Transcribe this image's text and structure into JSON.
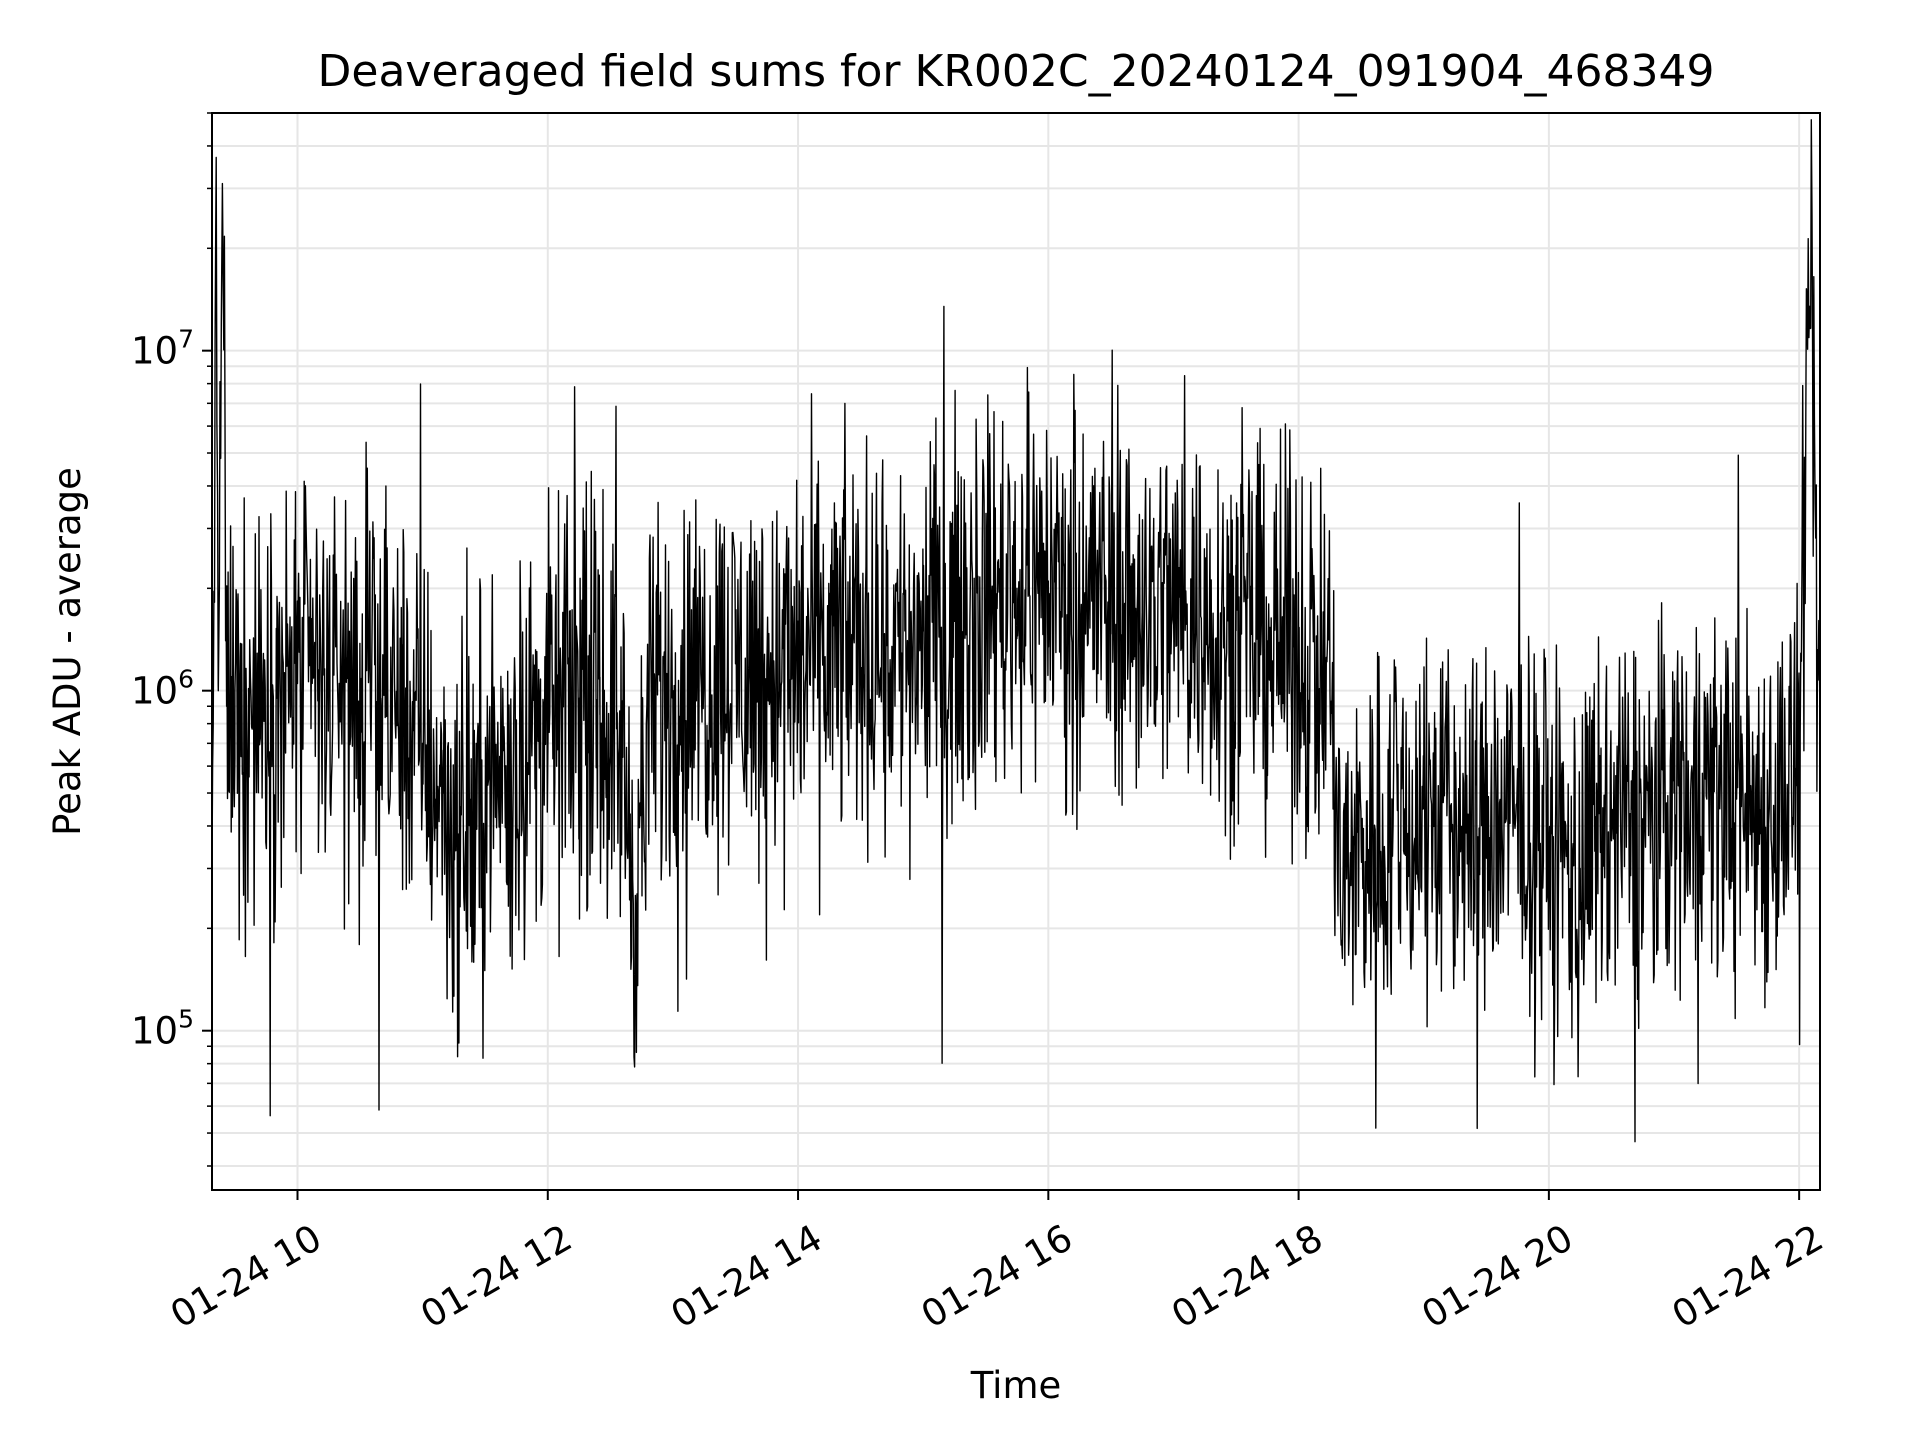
{
  "chart_data": {
    "type": "line",
    "title": "Deaveraged field sums for KR002C_20240124_091904_468349",
    "xlabel": "Time",
    "ylabel": "Peak ADU - average",
    "yscale": "log",
    "ylim": [
      34000,
      50000000
    ],
    "xlim": [
      "2024-01-24 09:19",
      "2024-01-24 22:10"
    ],
    "grid": true,
    "line_color": "#000000",
    "grid_color": "#e6e6e6",
    "x_ticks": [
      {
        "value": "2024-01-24 10:00",
        "label": "01-24 10"
      },
      {
        "value": "2024-01-24 12:00",
        "label": "01-24 12"
      },
      {
        "value": "2024-01-24 14:00",
        "label": "01-24 14"
      },
      {
        "value": "2024-01-24 16:00",
        "label": "01-24 16"
      },
      {
        "value": "2024-01-24 18:00",
        "label": "01-24 18"
      },
      {
        "value": "2024-01-24 20:00",
        "label": "01-24 20"
      },
      {
        "value": "2024-01-24 22:00",
        "label": "01-24 22"
      }
    ],
    "y_ticks": [
      {
        "value": 100000,
        "base": "10",
        "exp": "5"
      },
      {
        "value": 1000000,
        "base": "10",
        "exp": "6"
      },
      {
        "value": 10000000,
        "base": "10",
        "exp": "7"
      }
    ],
    "series": [
      {
        "x": [
          "2024-01-24 09:19",
          "2024-01-24 09:21",
          "2024-01-24 09:22",
          "2024-01-24 09:24",
          "2024-01-24 09:26",
          "2024-01-24 09:30",
          "2024-01-24 09:40",
          "2024-01-24 09:50",
          "2024-01-24 10:00",
          "2024-01-24 10:10",
          "2024-01-24 10:20",
          "2024-01-24 10:30",
          "2024-01-24 10:40",
          "2024-01-24 10:50",
          "2024-01-24 11:00",
          "2024-01-24 11:10",
          "2024-01-24 11:15",
          "2024-01-24 11:25",
          "2024-01-24 11:35",
          "2024-01-24 11:45",
          "2024-01-24 11:55",
          "2024-01-24 12:05",
          "2024-01-24 12:15",
          "2024-01-24 12:25",
          "2024-01-24 12:35",
          "2024-01-24 12:42",
          "2024-01-24 12:50",
          "2024-01-24 13:00",
          "2024-01-24 13:15",
          "2024-01-24 13:30",
          "2024-01-24 13:45",
          "2024-01-24 14:00",
          "2024-01-24 14:15",
          "2024-01-24 14:30",
          "2024-01-24 14:45",
          "2024-01-24 15:00",
          "2024-01-24 15:15",
          "2024-01-24 15:30",
          "2024-01-24 15:45",
          "2024-01-24 16:00",
          "2024-01-24 16:15",
          "2024-01-24 16:30",
          "2024-01-24 16:45",
          "2024-01-24 17:00",
          "2024-01-24 17:15",
          "2024-01-24 17:30",
          "2024-01-24 17:45",
          "2024-01-24 18:00",
          "2024-01-24 18:15",
          "2024-01-24 18:20",
          "2024-01-24 18:30",
          "2024-01-24 18:45",
          "2024-01-24 19:00",
          "2024-01-24 19:15",
          "2024-01-24 19:30",
          "2024-01-24 19:45",
          "2024-01-24 20:00",
          "2024-01-24 20:15",
          "2024-01-24 20:30",
          "2024-01-24 20:45",
          "2024-01-24 21:00",
          "2024-01-24 21:15",
          "2024-01-24 21:30",
          "2024-01-24 21:45",
          "2024-01-24 22:00",
          "2024-01-24 22:05",
          "2024-01-24 22:10"
        ],
        "y": [
          300000,
          37000000,
          1000000,
          31000000,
          900000,
          1000000,
          900000,
          950000,
          1050000,
          1150000,
          1050000,
          1000000,
          950000,
          900000,
          700000,
          500000,
          350000,
          400000,
          550000,
          650000,
          800000,
          900000,
          950000,
          850000,
          700000,
          250000,
          900000,
          1000000,
          1100000,
          1200000,
          1150000,
          1200000,
          1300000,
          1400000,
          1350000,
          1500000,
          1600000,
          1900000,
          2000000,
          2100000,
          2000000,
          1800000,
          1700000,
          1800000,
          1700000,
          1500000,
          1400000,
          1300000,
          1100000,
          250000,
          350000,
          400000,
          450000,
          400000,
          380000,
          420000,
          350000,
          300000,
          380000,
          420000,
          500000,
          550000,
          480000,
          450000,
          600000,
          13500000,
          700000
        ],
        "envelope": {
          "spike_every_n": 1,
          "min_observed": 44000,
          "max_observed": 37000000
        }
      }
    ]
  }
}
